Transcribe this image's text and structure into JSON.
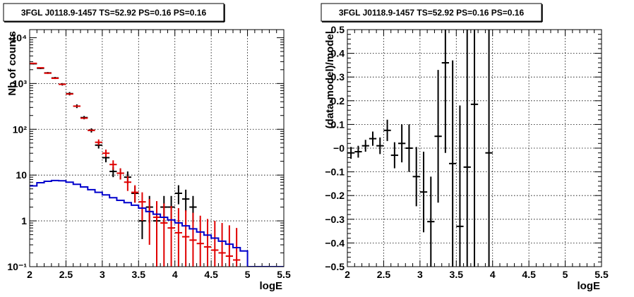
{
  "chart_data": [
    {
      "type": "histogram",
      "title": "3FGL J0118.9-1457 TS=52.92 PS=0.16 PS=0.16",
      "xlabel": "logE",
      "ylabel": "Nb of counts",
      "xlim": [
        2,
        5.5
      ],
      "ylim": [
        0.1,
        15000
      ],
      "log_y": true,
      "grid": true,
      "x_ticks": [
        2,
        2.5,
        3,
        3.5,
        4,
        4.5,
        5,
        5.5
      ],
      "x_tick_labels": [
        "2",
        "2.5",
        "3",
        "3.5",
        "4",
        "4.5",
        "5",
        "5.5"
      ],
      "y_ticks": [
        0.1,
        1,
        10,
        100,
        1000,
        10000
      ],
      "y_tick_labels": [
        "10⁻¹",
        "1",
        "10",
        "10²",
        "10³",
        "10⁴"
      ],
      "series": [
        {
          "role": "data",
          "color": "#000000",
          "points": [
            {
              "x": 2.05,
              "y": 2700,
              "ylo": 2600,
              "yhi": 2800
            },
            {
              "x": 2.15,
              "y": 2150,
              "ylo": 2060,
              "yhi": 2240
            },
            {
              "x": 2.25,
              "y": 1700,
              "ylo": 1620,
              "yhi": 1780
            },
            {
              "x": 2.35,
              "y": 1320,
              "ylo": 1250,
              "yhi": 1390
            },
            {
              "x": 2.45,
              "y": 960,
              "ylo": 900,
              "yhi": 1020
            },
            {
              "x": 2.55,
              "y": 600,
              "ylo": 550,
              "yhi": 650
            },
            {
              "x": 2.65,
              "y": 320,
              "ylo": 290,
              "yhi": 350
            },
            {
              "x": 2.75,
              "y": 180,
              "ylo": 165,
              "yhi": 195
            },
            {
              "x": 2.85,
              "y": 95,
              "ylo": 85,
              "yhi": 105
            },
            {
              "x": 2.95,
              "y": 45,
              "ylo": 38,
              "yhi": 52
            },
            {
              "x": 3.05,
              "y": 24,
              "ylo": 19,
              "yhi": 29
            },
            {
              "x": 3.15,
              "y": 12,
              "ylo": 9,
              "yhi": 15
            },
            {
              "x": 3.25,
              "y": 11,
              "ylo": 8,
              "yhi": 14
            },
            {
              "x": 3.35,
              "y": 9,
              "ylo": 6.5,
              "yhi": 12
            },
            {
              "x": 3.45,
              "y": 4,
              "ylo": 2.5,
              "yhi": 5.7
            },
            {
              "x": 3.55,
              "y": 1,
              "ylo": 0.4,
              "yhi": 2
            },
            {
              "x": 3.65,
              "y": 2,
              "ylo": 0.9,
              "yhi": 3.5
            },
            {
              "x": 3.75,
              "y": 1,
              "ylo": 0.4,
              "yhi": 2
            },
            {
              "x": 3.85,
              "y": 2,
              "ylo": 0.9,
              "yhi": 3.5
            },
            {
              "x": 3.95,
              "y": 2,
              "ylo": 0.9,
              "yhi": 3.5
            },
            {
              "x": 4.05,
              "y": 4,
              "ylo": 2.3,
              "yhi": 6
            },
            {
              "x": 4.15,
              "y": 3,
              "ylo": 1.6,
              "yhi": 4.8
            },
            {
              "x": 4.25,
              "y": 2,
              "ylo": 0.9,
              "yhi": 3.5
            }
          ]
        },
        {
          "role": "model",
          "color": "#e00000",
          "points": [
            {
              "x": 2.05,
              "y": 2750
            },
            {
              "x": 2.15,
              "y": 2200
            },
            {
              "x": 2.25,
              "y": 1680
            },
            {
              "x": 2.35,
              "y": 1300
            },
            {
              "x": 2.45,
              "y": 960
            },
            {
              "x": 2.55,
              "y": 590
            },
            {
              "x": 2.65,
              "y": 320
            },
            {
              "x": 2.75,
              "y": 175
            },
            {
              "x": 2.85,
              "y": 95
            },
            {
              "x": 2.95,
              "y": 52,
              "ylo": 45,
              "yhi": 60
            },
            {
              "x": 3.05,
              "y": 30,
              "ylo": 25,
              "yhi": 36
            },
            {
              "x": 3.15,
              "y": 17,
              "ylo": 13,
              "yhi": 21
            },
            {
              "x": 3.25,
              "y": 11,
              "ylo": 8,
              "yhi": 14
            },
            {
              "x": 3.35,
              "y": 7,
              "ylo": 4.5,
              "yhi": 9.5
            },
            {
              "x": 3.45,
              "y": 4.2,
              "ylo": 2.5,
              "yhi": 6
            },
            {
              "x": 3.55,
              "y": 2.6,
              "ylo": 1,
              "yhi": 4.2
            },
            {
              "x": 3.65,
              "y": 1.6,
              "ylo": 0.3,
              "yhi": 3
            },
            {
              "x": 3.75,
              "y": 1.2,
              "ylo": 0.1,
              "yhi": 2.7
            },
            {
              "x": 3.85,
              "y": 0.9,
              "ylo": 0.1,
              "yhi": 2.4
            },
            {
              "x": 3.95,
              "y": 0.7,
              "ylo": 0.1,
              "yhi": 2.1
            },
            {
              "x": 4.05,
              "y": 0.55,
              "ylo": 0.1,
              "yhi": 1.9
            },
            {
              "x": 4.15,
              "y": 0.45,
              "ylo": 0.1,
              "yhi": 1.7
            },
            {
              "x": 4.25,
              "y": 0.38,
              "ylo": 0.1,
              "yhi": 1.5
            },
            {
              "x": 4.35,
              "y": 0.32,
              "ylo": 0.1,
              "yhi": 1.3
            },
            {
              "x": 4.45,
              "y": 0.27,
              "ylo": 0.1,
              "yhi": 1.1
            },
            {
              "x": 4.55,
              "y": 0.23,
              "ylo": 0.1,
              "yhi": 1.0
            },
            {
              "x": 4.65,
              "y": 0.2,
              "ylo": 0.1,
              "yhi": 0.9
            },
            {
              "x": 4.75,
              "y": 0.17,
              "ylo": 0.1,
              "yhi": 0.8
            },
            {
              "x": 4.85,
              "y": 0.14,
              "ylo": 0.1,
              "yhi": 0.7
            }
          ]
        },
        {
          "role": "source",
          "color": "#0000cc",
          "bin_edges": [
            2,
            2.1,
            2.2,
            2.3,
            2.4,
            2.5,
            2.6,
            2.7,
            2.8,
            2.9,
            3,
            3.1,
            3.2,
            3.3,
            3.4,
            3.5,
            3.6,
            3.7,
            3.8,
            3.9,
            4,
            4.1,
            4.2,
            4.3,
            4.4,
            4.5,
            4.6,
            4.7,
            4.8,
            4.9,
            5,
            5.1,
            5.2,
            5.3,
            5.4,
            5.5
          ],
          "values": [
            5.8,
            6.8,
            7.3,
            7.6,
            7.5,
            7.0,
            6.3,
            5.5,
            4.8,
            4.2,
            3.7,
            3.2,
            2.8,
            2.5,
            2.2,
            1.9,
            1.6,
            1.4,
            1.2,
            1.05,
            0.9,
            0.78,
            0.67,
            0.57,
            0.49,
            0.42,
            0.36,
            0.31,
            0.26,
            0.22,
            0.1,
            0.1,
            0.1,
            0.1,
            0.1
          ]
        }
      ]
    },
    {
      "type": "scatter",
      "title": "3FGL J0118.9-1457 TS=52.92 PS=0.16 PS=0.16",
      "xlabel": "logE",
      "ylabel": "(data-model)/model",
      "xlim": [
        2,
        5.5
      ],
      "ylim": [
        -0.5,
        0.5
      ],
      "grid": true,
      "x_ticks": [
        2,
        2.5,
        3,
        3.5,
        4,
        4.5,
        5,
        5.5
      ],
      "x_tick_labels": [
        "2",
        "2.5",
        "3",
        "3.5",
        "4",
        "4.5",
        "5",
        "5.5"
      ],
      "y_ticks": [
        -0.5,
        -0.4,
        -0.3,
        -0.2,
        -0.1,
        0,
        0.1,
        0.2,
        0.3,
        0.4,
        0.5
      ],
      "y_tick_labels": [
        "−0.5",
        "−0.4",
        "−0.3",
        "−0.2",
        "−0.1",
        "−0",
        "0.1",
        "0.2",
        "0.3",
        "0.4",
        "0.5"
      ],
      "series": [
        {
          "role": "residuals",
          "color": "#000000",
          "points": [
            {
              "x": 2.05,
              "y": -0.02,
              "ylo": -0.045,
              "yhi": 0.005
            },
            {
              "x": 2.15,
              "y": -0.015,
              "ylo": -0.04,
              "yhi": 0.01
            },
            {
              "x": 2.25,
              "y": 0.01,
              "ylo": -0.015,
              "yhi": 0.035
            },
            {
              "x": 2.35,
              "y": 0.04,
              "ylo": 0.01,
              "yhi": 0.07
            },
            {
              "x": 2.45,
              "y": 0.01,
              "ylo": -0.025,
              "yhi": 0.045
            },
            {
              "x": 2.55,
              "y": 0.075,
              "ylo": 0.03,
              "yhi": 0.12
            },
            {
              "x": 2.65,
              "y": -0.03,
              "ylo": -0.085,
              "yhi": 0.025
            },
            {
              "x": 2.75,
              "y": 0.02,
              "ylo": -0.06,
              "yhi": 0.1
            },
            {
              "x": 2.85,
              "y": 0.0,
              "ylo": -0.1,
              "yhi": 0.1
            },
            {
              "x": 2.95,
              "y": -0.12,
              "ylo": -0.245,
              "yhi": 0.005
            },
            {
              "x": 3.05,
              "y": -0.185,
              "ylo": -0.355,
              "yhi": -0.015
            },
            {
              "x": 3.15,
              "y": -0.31,
              "ylo": -0.5,
              "yhi": -0.12
            },
            {
              "x": 3.25,
              "y": 0.05,
              "ylo": -0.23,
              "yhi": 0.33
            },
            {
              "x": 3.35,
              "y": 0.36,
              "ylo": -0.02,
              "yhi": 0.5
            },
            {
              "x": 3.45,
              "y": -0.065,
              "ylo": -0.5,
              "yhi": 0.37
            },
            {
              "x": 3.55,
              "y": -0.33,
              "ylo": -0.5,
              "yhi": 0.18
            },
            {
              "x": 3.65,
              "y": -0.08,
              "ylo": -0.5,
              "yhi": 0.5
            },
            {
              "x": 3.75,
              "y": 0.185,
              "ylo": -0.5,
              "yhi": 0.5
            },
            {
              "x": 3.95,
              "y": -0.02,
              "ylo": -0.5,
              "yhi": 0.5
            }
          ]
        }
      ]
    }
  ]
}
